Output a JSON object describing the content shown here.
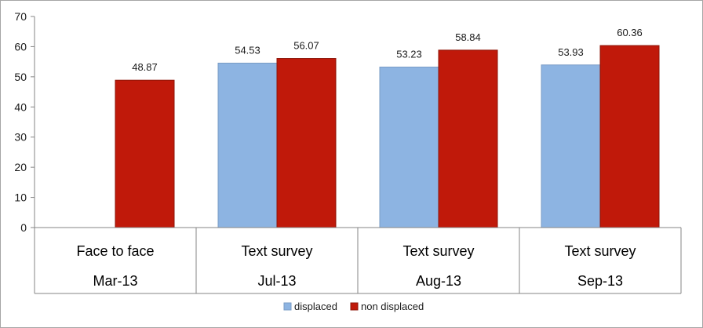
{
  "chart_data": {
    "type": "bar",
    "categories": [
      {
        "method": "Face to face",
        "date": "Mar-13"
      },
      {
        "method": "Text survey",
        "date": "Jul-13"
      },
      {
        "method": "Text survey",
        "date": "Aug-13"
      },
      {
        "method": "Text survey",
        "date": "Sep-13"
      }
    ],
    "series": [
      {
        "name": "displaced",
        "color": "#8db4e2",
        "values": [
          null,
          54.53,
          53.23,
          53.93
        ],
        "labels": [
          "",
          "54.53",
          "53.23",
          "53.93"
        ]
      },
      {
        "name": "non displaced",
        "color": "#c0190a",
        "values": [
          48.87,
          56.07,
          58.84,
          60.36
        ],
        "labels": [
          "48.87",
          "56.07",
          "58.84",
          "60.36"
        ]
      }
    ],
    "ylim": [
      0,
      70
    ],
    "yticks": [
      "0",
      "10",
      "20",
      "30",
      "40",
      "50",
      "60",
      "70"
    ],
    "title": "",
    "xlabel": "",
    "ylabel": "",
    "grid": false,
    "legend_position": "bottom"
  }
}
